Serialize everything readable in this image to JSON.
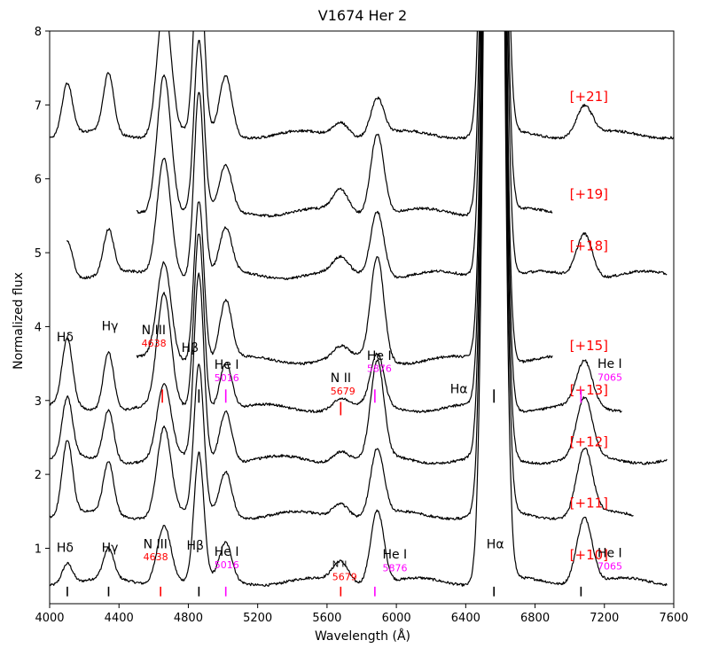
{
  "chart_data": {
    "type": "line",
    "title": "V1674 Her 2",
    "xlabel": "Wavelength (Å)",
    "ylabel": "Normalized flux",
    "xlim": [
      4000,
      7600
    ],
    "ylim": [
      0.25,
      8
    ],
    "xticks": [
      4000,
      4400,
      4800,
      5200,
      5600,
      6000,
      6400,
      6800,
      7200,
      7600
    ],
    "yticks": [
      1,
      2,
      3,
      4,
      5,
      6,
      7,
      8
    ],
    "colors": {
      "red": "#ff0000",
      "magenta": "#ff00ff",
      "black": "#000000"
    },
    "features": [
      {
        "name": "Hdelta",
        "center": 4102,
        "width": 30
      },
      {
        "name": "Hgamma",
        "center": 4340,
        "width": 30
      },
      {
        "name": "NIII",
        "center": 4660,
        "width": 40
      },
      {
        "name": "Hbeta",
        "center": 4861,
        "width": 28
      },
      {
        "name": "HeI5016",
        "center": 5016,
        "width": 35
      },
      {
        "name": "NII",
        "center": 5679,
        "width": 45
      },
      {
        "name": "HeI5876",
        "center": 5890,
        "width": 38
      },
      {
        "name": "Halpha",
        "center": 6563,
        "width": 40
      },
      {
        "name": "HeI7065",
        "center": 7085,
        "width": 45
      }
    ],
    "series": [
      {
        "name": "+10",
        "label": "[+10]",
        "offset": 0.55,
        "x_range": [
          4000,
          7560
        ],
        "amplitudes": [
          0.28,
          0.4,
          0.8,
          1.7,
          0.5,
          0.28,
          1.0,
          25,
          0.9
        ],
        "label_x": 7000,
        "label_y": 0.85
      },
      {
        "name": "+11",
        "label": "[+11]",
        "offset": 1.45,
        "x_range": [
          4000,
          7370
        ],
        "amplitudes": [
          1.0,
          0.7,
          1.2,
          2.0,
          0.6,
          0.2,
          0.9,
          25,
          0.9
        ],
        "label_x": 7000,
        "label_y": 1.55
      },
      {
        "name": "+12",
        "label": "[+12]",
        "offset": 2.2,
        "x_range": [
          4000,
          7560
        ],
        "amplitudes": [
          0.8,
          0.7,
          1.0,
          2.5,
          0.7,
          0.15,
          1.3,
          25,
          0.8
        ],
        "label_x": 7000,
        "label_y": 2.38
      },
      {
        "name": "+13",
        "label": "[+13]",
        "offset": 2.9,
        "x_range": [
          4000,
          7300
        ],
        "amplitudes": [
          0.9,
          0.8,
          1.5,
          2.4,
          0.65,
          0.13,
          0.7,
          25,
          0.6
        ],
        "label_x": 7000,
        "label_y": 3.08
      },
      {
        "name": "+15",
        "label": "[+15]",
        "offset": 3.55,
        "x_range": [
          4500,
          6900
        ],
        "amplitudes": [
          0,
          0,
          1.3,
          2.2,
          0.8,
          0.15,
          1.4,
          25,
          0
        ],
        "label_x": 7000,
        "label_y": 3.68
      },
      {
        "name": "+18",
        "label": "[+18]",
        "offset": 4.7,
        "x_range": [
          4100,
          7560
        ],
        "amplitudes": [
          0.5,
          0.6,
          1.6,
          2.5,
          0.6,
          0.2,
          0.9,
          25,
          0.6
        ],
        "label_x": 7000,
        "label_y": 5.03
      },
      {
        "name": "+19",
        "label": "[+19]",
        "offset": 5.55,
        "x_range": [
          4500,
          6900
        ],
        "amplitudes": [
          0,
          0,
          1.9,
          2.3,
          0.6,
          0.3,
          1.1,
          25,
          0
        ],
        "label_x": 7000,
        "label_y": 5.73
      },
      {
        "name": "+21",
        "label": "[+21]",
        "offset": 6.6,
        "x_range": [
          4000,
          7600
        ],
        "amplitudes": [
          0.7,
          0.8,
          1.8,
          2.6,
          0.8,
          0.2,
          0.5,
          25,
          0.4
        ],
        "label_x": 7000,
        "label_y": 7.05
      }
    ],
    "line_labels_upper": [
      {
        "text": "Hδ",
        "x": 4040,
        "y": 3.8,
        "color": "black",
        "size": 14
      },
      {
        "text": "Hγ",
        "x": 4300,
        "y": 3.95,
        "color": "black",
        "size": 14
      },
      {
        "text": "N III",
        "x": 4530,
        "y": 3.9,
        "color": "black",
        "size": 14
      },
      {
        "text": "4638",
        "x": 4530,
        "y": 3.73,
        "color": "red",
        "size": 11
      },
      {
        "text": "Hβ",
        "x": 4760,
        "y": 3.66,
        "color": "black",
        "size": 14
      },
      {
        "text": "He I",
        "x": 4950,
        "y": 3.43,
        "color": "black",
        "size": 14
      },
      {
        "text": "5016",
        "x": 4950,
        "y": 3.26,
        "color": "magenta",
        "size": 11
      },
      {
        "text": "N II",
        "x": 5620,
        "y": 3.25,
        "color": "black",
        "size": 14
      },
      {
        "text": "5679",
        "x": 5620,
        "y": 3.08,
        "color": "red",
        "size": 11
      },
      {
        "text": "He I",
        "x": 5830,
        "y": 3.55,
        "color": "black",
        "size": 14
      },
      {
        "text": "5876",
        "x": 5830,
        "y": 3.39,
        "color": "magenta",
        "size": 11
      },
      {
        "text": "Hα",
        "x": 6310,
        "y": 3.1,
        "color": "black",
        "size": 14
      },
      {
        "text": "He I",
        "x": 7160,
        "y": 3.44,
        "color": "black",
        "size": 14
      },
      {
        "text": "7065",
        "x": 7160,
        "y": 3.27,
        "color": "magenta",
        "size": 11
      }
    ],
    "line_labels_lower": [
      {
        "text": "Hδ",
        "x": 4040,
        "y": 0.95,
        "color": "black",
        "size": 14
      },
      {
        "text": "Hγ",
        "x": 4300,
        "y": 0.95,
        "color": "black",
        "size": 14
      },
      {
        "text": "N III",
        "x": 4540,
        "y": 1.0,
        "color": "black",
        "size": 14
      },
      {
        "text": "4638",
        "x": 4540,
        "y": 0.84,
        "color": "red",
        "size": 11
      },
      {
        "text": "Hβ",
        "x": 4790,
        "y": 0.98,
        "color": "black",
        "size": 14
      },
      {
        "text": "He I",
        "x": 4950,
        "y": 0.9,
        "color": "black",
        "size": 14
      },
      {
        "text": "5016",
        "x": 4950,
        "y": 0.73,
        "color": "magenta",
        "size": 11
      },
      {
        "text": "N II",
        "x": 5630,
        "y": 0.75,
        "color": "black",
        "size": 10
      },
      {
        "text": "5679",
        "x": 5630,
        "y": 0.57,
        "color": "red",
        "size": 11
      },
      {
        "text": "He I",
        "x": 5920,
        "y": 0.86,
        "color": "black",
        "size": 14
      },
      {
        "text": "5876",
        "x": 5920,
        "y": 0.69,
        "color": "magenta",
        "size": 11
      },
      {
        "text": "Hα",
        "x": 6520,
        "y": 1.0,
        "color": "black",
        "size": 14
      },
      {
        "text": "He I",
        "x": 7160,
        "y": 0.88,
        "color": "black",
        "size": 14
      },
      {
        "text": "7065",
        "x": 7160,
        "y": 0.71,
        "color": "magenta",
        "size": 11
      }
    ],
    "marker_ticks": [
      {
        "x": 4102,
        "y0": 0.35,
        "y1": 0.48,
        "color": "black"
      },
      {
        "x": 4340,
        "y0": 0.35,
        "y1": 0.48,
        "color": "black"
      },
      {
        "x": 4640,
        "y0": 0.35,
        "y1": 0.48,
        "color": "red"
      },
      {
        "x": 4861,
        "y0": 0.35,
        "y1": 0.48,
        "color": "black"
      },
      {
        "x": 5016,
        "y0": 0.35,
        "y1": 0.48,
        "color": "magenta"
      },
      {
        "x": 5679,
        "y0": 0.35,
        "y1": 0.48,
        "color": "red"
      },
      {
        "x": 5876,
        "y0": 0.35,
        "y1": 0.48,
        "color": "magenta"
      },
      {
        "x": 6563,
        "y0": 0.35,
        "y1": 0.48,
        "color": "black"
      },
      {
        "x": 7065,
        "y0": 0.35,
        "y1": 0.48,
        "color": "black"
      },
      {
        "x": 4650,
        "y0": 2.97,
        "y1": 3.15,
        "color": "red"
      },
      {
        "x": 4861,
        "y0": 2.97,
        "y1": 3.15,
        "color": "black"
      },
      {
        "x": 5016,
        "y0": 2.97,
        "y1": 3.15,
        "color": "magenta"
      },
      {
        "x": 5679,
        "y0": 2.8,
        "y1": 2.98,
        "color": "red"
      },
      {
        "x": 5876,
        "y0": 2.97,
        "y1": 3.15,
        "color": "magenta"
      },
      {
        "x": 6563,
        "y0": 2.97,
        "y1": 3.15,
        "color": "black"
      },
      {
        "x": 7065,
        "y0": 2.97,
        "y1": 3.15,
        "color": "magenta"
      }
    ]
  }
}
